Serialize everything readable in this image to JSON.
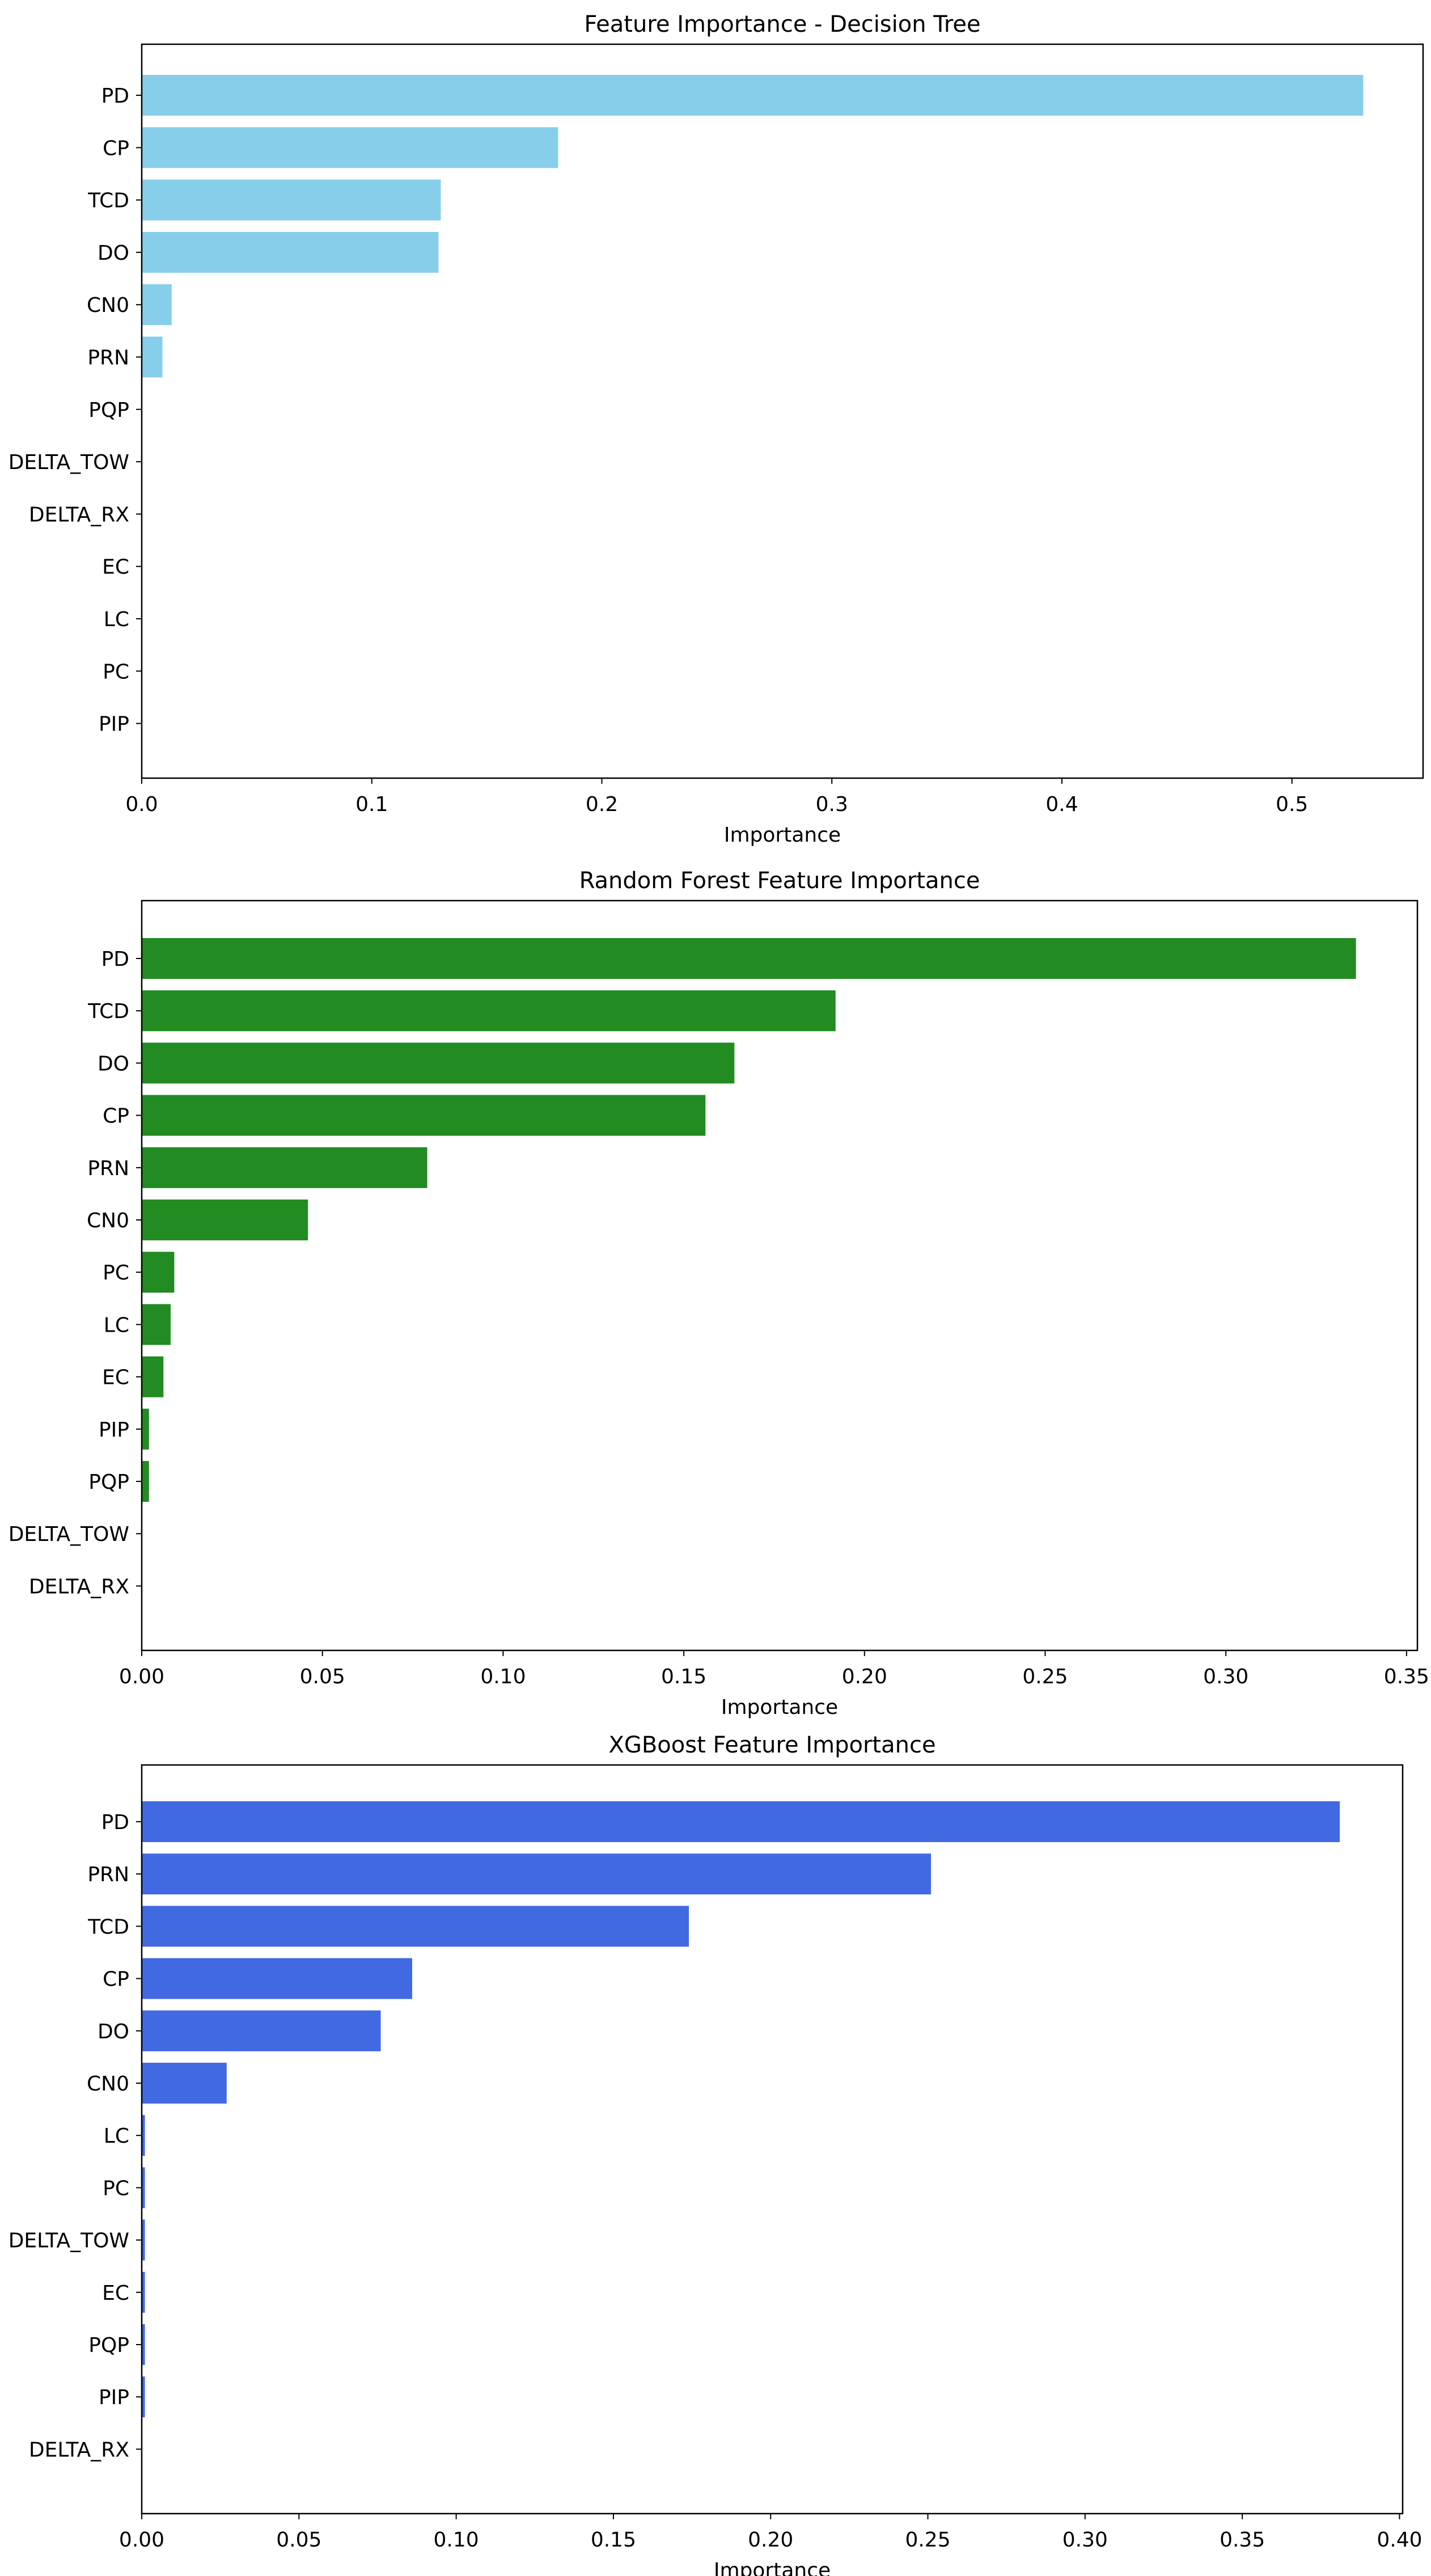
{
  "chart_data": [
    {
      "type": "bar",
      "orientation": "horizontal",
      "title": "Feature Importance - Decision Tree",
      "xlabel": "Importance",
      "ylabel": "",
      "xlim": [
        0,
        0.557
      ],
      "xticks": [
        0.0,
        0.1,
        0.2,
        0.3,
        0.4,
        0.5
      ],
      "xtick_labels": [
        "0.0",
        "0.1",
        "0.2",
        "0.3",
        "0.4",
        "0.5"
      ],
      "bar_color": "#87ceeb",
      "grid": false,
      "categories": [
        "PD",
        "CP",
        "TCD",
        "DO",
        "CN0",
        "PRN",
        "PQP",
        "DELTA_TOW",
        "DELTA_RX",
        "EC",
        "LC",
        "PC",
        "PIP"
      ],
      "values": [
        0.531,
        0.181,
        0.13,
        0.129,
        0.013,
        0.009,
        0.0,
        0.0,
        0.0,
        0.0,
        0.0,
        0.0,
        0.0
      ]
    },
    {
      "type": "bar",
      "orientation": "horizontal",
      "title": "Random Forest Feature Importance",
      "xlabel": "Importance",
      "ylabel": "",
      "xlim": [
        0,
        0.353
      ],
      "xticks": [
        0.0,
        0.05,
        0.1,
        0.15,
        0.2,
        0.25,
        0.3,
        0.35
      ],
      "xtick_labels": [
        "0.00",
        "0.05",
        "0.10",
        "0.15",
        "0.20",
        "0.25",
        "0.30",
        "0.35"
      ],
      "bar_color": "#228b22",
      "grid": false,
      "categories": [
        "PD",
        "TCD",
        "DO",
        "CP",
        "PRN",
        "CN0",
        "PC",
        "LC",
        "EC",
        "PIP",
        "PQP",
        "DELTA_TOW",
        "DELTA_RX"
      ],
      "values": [
        0.336,
        0.192,
        0.164,
        0.156,
        0.079,
        0.046,
        0.009,
        0.008,
        0.006,
        0.002,
        0.002,
        0.0,
        0.0
      ]
    },
    {
      "type": "bar",
      "orientation": "horizontal",
      "title": "XGBoost Feature Importance",
      "xlabel": "Importance",
      "ylabel": "",
      "xlim": [
        0,
        0.401
      ],
      "xticks": [
        0.0,
        0.05,
        0.1,
        0.15,
        0.2,
        0.25,
        0.3,
        0.35,
        0.4
      ],
      "xtick_labels": [
        "0.00",
        "0.05",
        "0.10",
        "0.15",
        "0.20",
        "0.25",
        "0.30",
        "0.35",
        "0.40"
      ],
      "bar_color": "#4169e1",
      "grid": false,
      "categories": [
        "PD",
        "PRN",
        "TCD",
        "CP",
        "DO",
        "CN0",
        "LC",
        "PC",
        "DELTA_TOW",
        "EC",
        "PQP",
        "PIP",
        "DELTA_RX"
      ],
      "values": [
        0.381,
        0.251,
        0.174,
        0.086,
        0.076,
        0.027,
        0.001,
        0.001,
        0.001,
        0.001,
        0.001,
        0.001,
        0.0
      ]
    }
  ]
}
